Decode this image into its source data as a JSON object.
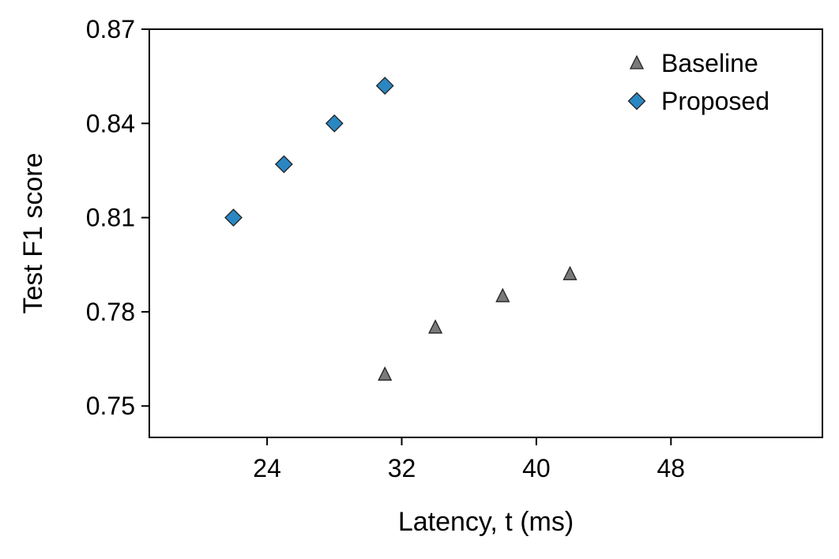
{
  "chart_data": {
    "type": "scatter",
    "title": "",
    "xlabel": "Latency, t (ms)",
    "ylabel": "Test F1 score",
    "xlim": [
      17,
      57
    ],
    "ylim": [
      0.74,
      0.87
    ],
    "xticks": [
      24,
      32,
      40,
      48
    ],
    "yticks": [
      0.75,
      0.78,
      0.81,
      0.84,
      0.87
    ],
    "xtick_labels": [
      "24",
      "32",
      "40",
      "48"
    ],
    "ytick_labels": [
      "0.75",
      "0.78",
      "0.81",
      "0.84",
      "0.87"
    ],
    "grid": false,
    "legend_position": "top-right",
    "series": [
      {
        "name": "Baseline",
        "marker": "triangle",
        "color": "#7a7a7a",
        "x": [
          31,
          34,
          38,
          42
        ],
        "y": [
          0.76,
          0.775,
          0.785,
          0.792
        ]
      },
      {
        "name": "Proposed",
        "marker": "diamond",
        "color": "#2a87c2",
        "x": [
          22,
          25,
          28,
          31
        ],
        "y": [
          0.81,
          0.827,
          0.84,
          0.852
        ]
      }
    ]
  }
}
